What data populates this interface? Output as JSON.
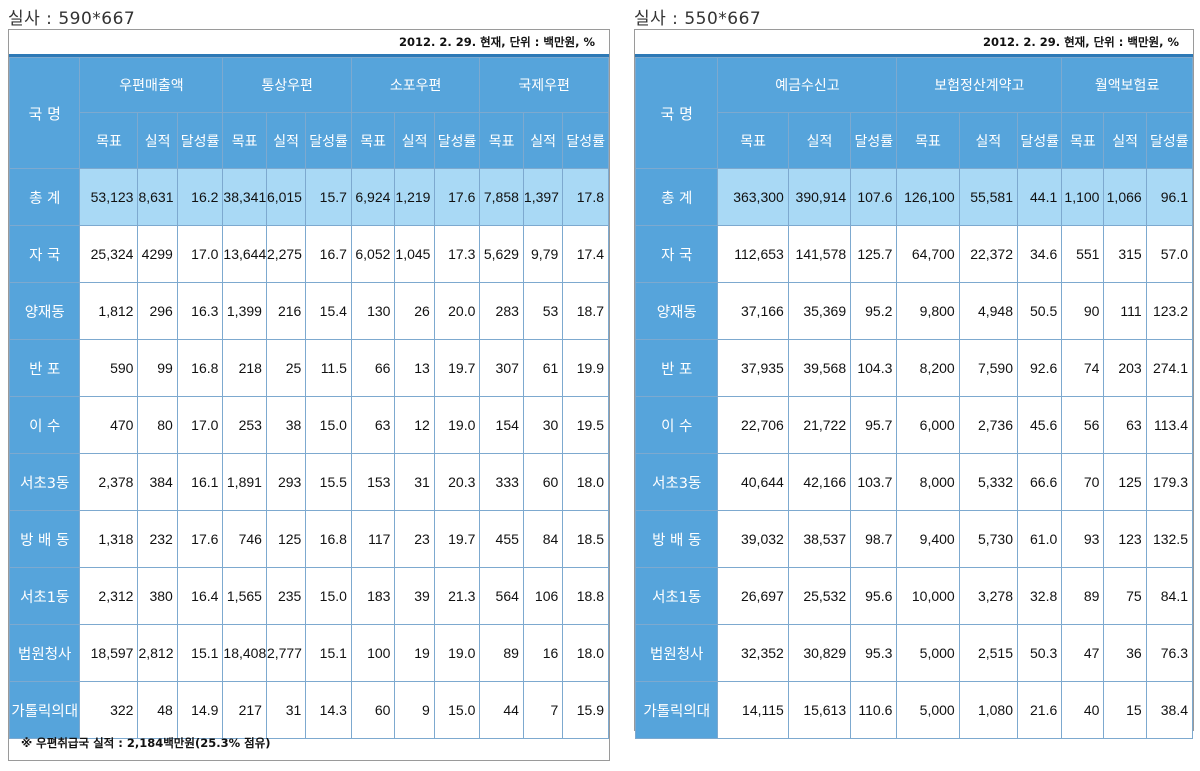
{
  "left": {
    "caption": "실사 : 590*667",
    "meta": "2012. 2. 29. 현재, 단위 : 백만원, %",
    "name_header": "국 명",
    "groups": [
      "우편매출액",
      "통상우편",
      "소포우편",
      "국제우편"
    ],
    "subheaders": [
      "목표",
      "실적",
      "달성률"
    ],
    "rows": [
      {
        "name": "총 계",
        "values": [
          "53,123",
          "8,631",
          "16.2",
          "38,341",
          "6,015",
          "15.7",
          "6,924",
          "1,219",
          "17.6",
          "7,858",
          "1,397",
          "17.8"
        ]
      },
      {
        "name": "자 국",
        "values": [
          "25,324",
          "4299",
          "17.0",
          "13,644",
          "2,275",
          "16.7",
          "6,052",
          "1,045",
          "17.3",
          "5,629",
          "9,79",
          "17.4"
        ]
      },
      {
        "name": "양재동",
        "values": [
          "1,812",
          "296",
          "16.3",
          "1,399",
          "216",
          "15.4",
          "130",
          "26",
          "20.0",
          "283",
          "53",
          "18.7"
        ]
      },
      {
        "name": "반 포",
        "values": [
          "590",
          "99",
          "16.8",
          "218",
          "25",
          "11.5",
          "66",
          "13",
          "19.7",
          "307",
          "61",
          "19.9"
        ]
      },
      {
        "name": "이 수",
        "values": [
          "470",
          "80",
          "17.0",
          "253",
          "38",
          "15.0",
          "63",
          "12",
          "19.0",
          "154",
          "30",
          "19.5"
        ]
      },
      {
        "name": "서초3동",
        "values": [
          "2,378",
          "384",
          "16.1",
          "1,891",
          "293",
          "15.5",
          "153",
          "31",
          "20.3",
          "333",
          "60",
          "18.0"
        ]
      },
      {
        "name": "방 배 동",
        "values": [
          "1,318",
          "232",
          "17.6",
          "746",
          "125",
          "16.8",
          "117",
          "23",
          "19.7",
          "455",
          "84",
          "18.5"
        ]
      },
      {
        "name": "서초1동",
        "values": [
          "2,312",
          "380",
          "16.4",
          "1,565",
          "235",
          "15.0",
          "183",
          "39",
          "21.3",
          "564",
          "106",
          "18.8"
        ]
      },
      {
        "name": "법원청사",
        "values": [
          "18,597",
          "2,812",
          "15.1",
          "18,408",
          "2,777",
          "15.1",
          "100",
          "19",
          "19.0",
          "89",
          "16",
          "18.0"
        ]
      },
      {
        "name": "가톨릭의대",
        "values": [
          "322",
          "48",
          "14.9",
          "217",
          "31",
          "14.3",
          "60",
          "9",
          "15.0",
          "44",
          "7",
          "15.9"
        ]
      }
    ],
    "note": "※ 우편취급국 실적 : 2,184백만원(25.3% 점유)"
  },
  "right": {
    "caption": "실사 : 550*667",
    "meta": "2012. 2. 29. 현재, 단위 : 백만원, %",
    "name_header": "국 명",
    "groups": [
      "예금수신고",
      "보험정산계약고",
      "월액보험료"
    ],
    "subheaders": [
      "목표",
      "실적",
      "달성률"
    ],
    "rows": [
      {
        "name": "총 계",
        "values": [
          "363,300",
          "390,914",
          "107.6",
          "126,100",
          "55,581",
          "44.1",
          "1,100",
          "1,066",
          "96.1"
        ]
      },
      {
        "name": "자 국",
        "values": [
          "112,653",
          "141,578",
          "125.7",
          "64,700",
          "22,372",
          "34.6",
          "551",
          "315",
          "57.0"
        ]
      },
      {
        "name": "양재동",
        "values": [
          "37,166",
          "35,369",
          "95.2",
          "9,800",
          "4,948",
          "50.5",
          "90",
          "111",
          "123.2"
        ]
      },
      {
        "name": "반 포",
        "values": [
          "37,935",
          "39,568",
          "104.3",
          "8,200",
          "7,590",
          "92.6",
          "74",
          "203",
          "274.1"
        ]
      },
      {
        "name": "이 수",
        "values": [
          "22,706",
          "21,722",
          "95.7",
          "6,000",
          "2,736",
          "45.6",
          "56",
          "63",
          "113.4"
        ]
      },
      {
        "name": "서초3동",
        "values": [
          "40,644",
          "42,166",
          "103.7",
          "8,000",
          "5,332",
          "66.6",
          "70",
          "125",
          "179.3"
        ]
      },
      {
        "name": "방 배 동",
        "values": [
          "39,032",
          "38,537",
          "98.7",
          "9,400",
          "5,730",
          "61.0",
          "93",
          "123",
          "132.5"
        ]
      },
      {
        "name": "서초1동",
        "values": [
          "26,697",
          "25,532",
          "95.6",
          "10,000",
          "3,278",
          "32.8",
          "89",
          "75",
          "84.1"
        ]
      },
      {
        "name": "법원청사",
        "values": [
          "32,352",
          "30,829",
          "95.3",
          "5,000",
          "2,515",
          "50.3",
          "47",
          "36",
          "76.3"
        ]
      },
      {
        "name": "가톨릭의대",
        "values": [
          "14,115",
          "15,613",
          "110.6",
          "5,000",
          "1,080",
          "21.6",
          "40",
          "15",
          "38.4"
        ]
      }
    ]
  }
}
